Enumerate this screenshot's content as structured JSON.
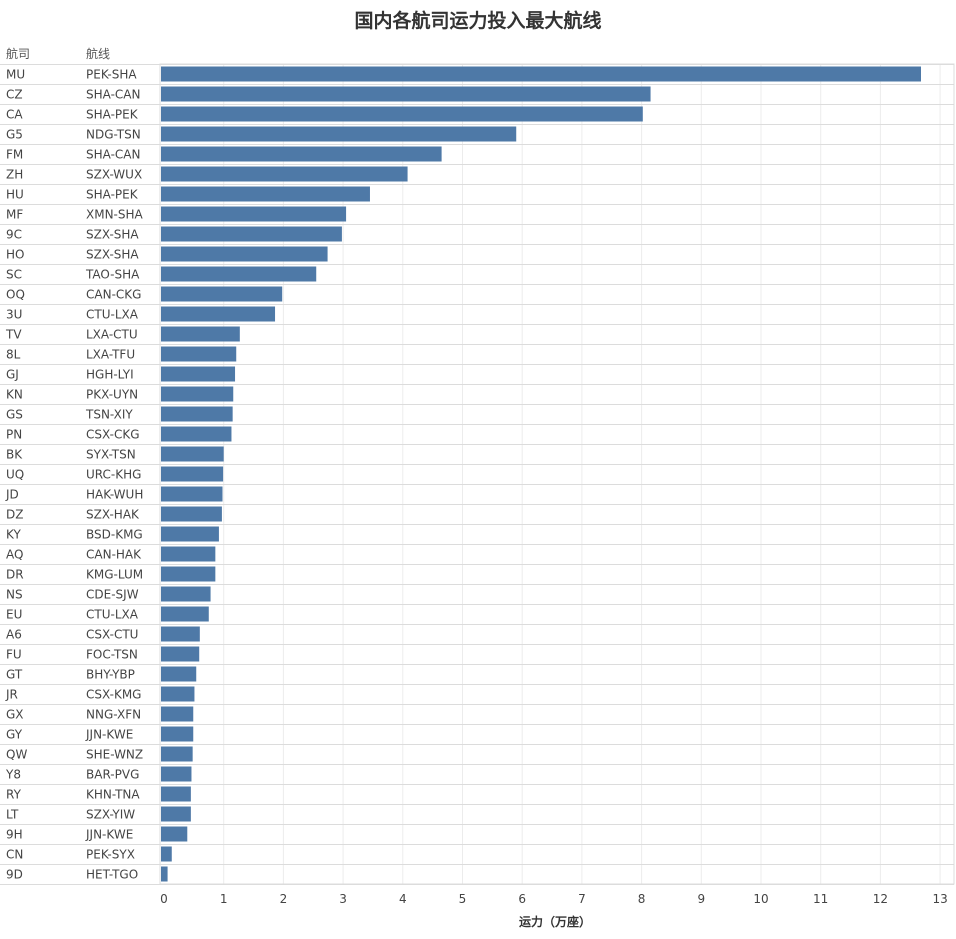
{
  "chart_data": {
    "type": "bar",
    "orientation": "horizontal",
    "title": "国内各航司运力投入最大航线",
    "column_headers": [
      "航司",
      "航线"
    ],
    "xlabel": "运力（万座）",
    "xlim": [
      0,
      13
    ],
    "xticks": [
      0,
      1,
      2,
      3,
      4,
      5,
      6,
      7,
      8,
      9,
      10,
      11,
      12,
      13
    ],
    "grid": true,
    "bar_color": "#4e79a7",
    "rows": [
      {
        "airline": "MU",
        "route": "PEK-SHA",
        "value": 12.68
      },
      {
        "airline": "CZ",
        "route": "SHA-CAN",
        "value": 8.15
      },
      {
        "airline": "CA",
        "route": "SHA-PEK",
        "value": 8.02
      },
      {
        "airline": "G5",
        "route": "NDG-TSN",
        "value": 5.9
      },
      {
        "airline": "FM",
        "route": "SHA-CAN",
        "value": 4.65
      },
      {
        "airline": "ZH",
        "route": "SZX-WUX",
        "value": 4.08
      },
      {
        "airline": "HU",
        "route": "SHA-PEK",
        "value": 3.45
      },
      {
        "airline": "MF",
        "route": "XMN-SHA",
        "value": 3.05
      },
      {
        "airline": "9C",
        "route": "SZX-SHA",
        "value": 2.98
      },
      {
        "airline": "HO",
        "route": "SZX-SHA",
        "value": 2.74
      },
      {
        "airline": "SC",
        "route": "TAO-SHA",
        "value": 2.55
      },
      {
        "airline": "OQ",
        "route": "CAN-CKG",
        "value": 1.98
      },
      {
        "airline": "3U",
        "route": "CTU-LXA",
        "value": 1.86
      },
      {
        "airline": "TV",
        "route": "LXA-CTU",
        "value": 1.27
      },
      {
        "airline": "8L",
        "route": "LXA-TFU",
        "value": 1.21
      },
      {
        "airline": "GJ",
        "route": "HGH-LYI",
        "value": 1.19
      },
      {
        "airline": "KN",
        "route": "PKX-UYN",
        "value": 1.16
      },
      {
        "airline": "GS",
        "route": "TSN-XIY",
        "value": 1.15
      },
      {
        "airline": "PN",
        "route": "CSX-CKG",
        "value": 1.13
      },
      {
        "airline": "BK",
        "route": "SYX-TSN",
        "value": 1.0
      },
      {
        "airline": "UQ",
        "route": "URC-KHG",
        "value": 0.99
      },
      {
        "airline": "JD",
        "route": "HAK-WUH",
        "value": 0.98
      },
      {
        "airline": "DZ",
        "route": "SZX-HAK",
        "value": 0.97
      },
      {
        "airline": "KY",
        "route": "BSD-KMG",
        "value": 0.92
      },
      {
        "airline": "AQ",
        "route": "CAN-HAK",
        "value": 0.86
      },
      {
        "airline": "DR",
        "route": "KMG-LUM",
        "value": 0.86
      },
      {
        "airline": "NS",
        "route": "CDE-SJW",
        "value": 0.78
      },
      {
        "airline": "EU",
        "route": "CTU-LXA",
        "value": 0.75
      },
      {
        "airline": "A6",
        "route": "CSX-CTU",
        "value": 0.6
      },
      {
        "airline": "FU",
        "route": "FOC-TSN",
        "value": 0.59
      },
      {
        "airline": "GT",
        "route": "BHY-YBP",
        "value": 0.54
      },
      {
        "airline": "JR",
        "route": "CSX-KMG",
        "value": 0.51
      },
      {
        "airline": "GX",
        "route": "NNG-XFN",
        "value": 0.49
      },
      {
        "airline": "GY",
        "route": "JJN-KWE",
        "value": 0.49
      },
      {
        "airline": "QW",
        "route": "SHE-WNZ",
        "value": 0.48
      },
      {
        "airline": "Y8",
        "route": "BAR-PVG",
        "value": 0.46
      },
      {
        "airline": "RY",
        "route": "KHN-TNA",
        "value": 0.45
      },
      {
        "airline": "LT",
        "route": "SZX-YIW",
        "value": 0.45
      },
      {
        "airline": "9H",
        "route": "JJN-KWE",
        "value": 0.39
      },
      {
        "airline": "CN",
        "route": "PEK-SYX",
        "value": 0.13
      },
      {
        "airline": "9D",
        "route": "HET-TGO",
        "value": 0.06
      }
    ]
  }
}
